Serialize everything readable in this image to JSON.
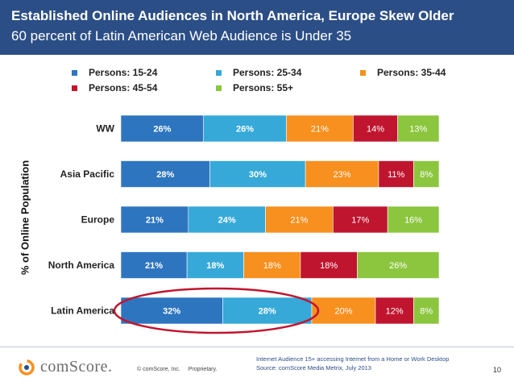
{
  "header": {
    "title": "Established Online Audiences in North America, Europe Skew Older",
    "subtitle": "60 percent of Latin American Web Audience is Under 35"
  },
  "chart_data": {
    "type": "bar",
    "orientation": "horizontal",
    "stacked": true,
    "percent_stacked": true,
    "ylabel": "% of Online Population",
    "categories": [
      "WW",
      "Asia Pacific",
      "Europe",
      "North America",
      "Latin America"
    ],
    "series": [
      {
        "name": "Persons: 15-24",
        "color": "#2e75c0",
        "values": [
          26,
          28,
          21,
          21,
          32
        ],
        "labels": [
          "26%",
          "28%",
          "21%",
          "21%",
          "32%"
        ]
      },
      {
        "name": "Persons: 25-34",
        "color": "#36a9d8",
        "values": [
          26,
          30,
          24,
          18,
          28
        ],
        "labels": [
          "26%",
          "30%",
          "24%",
          "18%",
          "28%"
        ]
      },
      {
        "name": "Persons: 35-44",
        "color": "#f7901e",
        "values": [
          21,
          23,
          21,
          18,
          20
        ],
        "labels": [
          "21%",
          "23%",
          "21%",
          "18%",
          "20%"
        ]
      },
      {
        "name": "Persons: 45-54",
        "color": "#c0152f",
        "values": [
          14,
          11,
          17,
          18,
          12
        ],
        "labels": [
          "14%",
          "11%",
          "17%",
          "18%",
          "12%"
        ]
      },
      {
        "name": "Persons: 55+",
        "color": "#8cc63f",
        "values": [
          13,
          8,
          16,
          26,
          8
        ],
        "labels": [
          "13%",
          "8%",
          "16%",
          "26%",
          "8%"
        ]
      }
    ],
    "highlight": {
      "category": "Latin America",
      "series": [
        "Persons: 15-24",
        "Persons: 25-34"
      ],
      "color": "#c0152f"
    }
  },
  "footer": {
    "logo_text": "comScore.",
    "copyright": "© comScore, Inc.",
    "proprietary": "Proprietary.",
    "source_line1": "Internet Audience 15+ accessing Internet from a Home or Work Desktop",
    "source_line2": "Source:  comScore Media Metrix, July 2013",
    "page_number": "10"
  }
}
